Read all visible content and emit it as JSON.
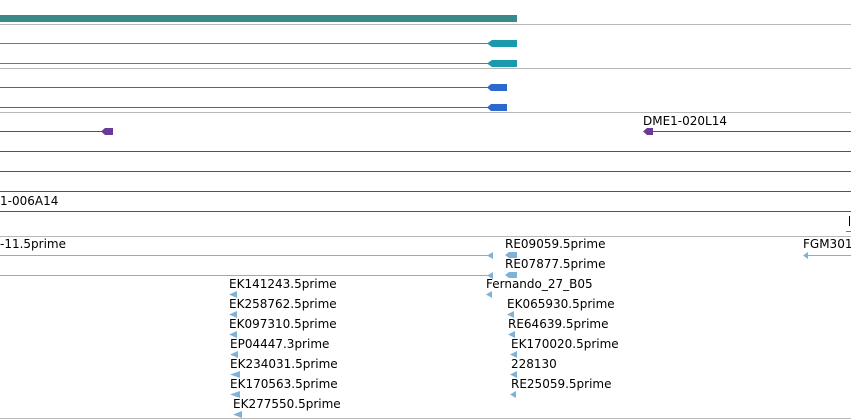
{
  "colors": {
    "separator": "#b8b8b8",
    "top_bar": "#3a8a8a",
    "teal": "#1a9aaa",
    "blue": "#2a6acc",
    "purple": "#6a3a9a",
    "est": "#7fb2d6"
  },
  "tracks": {
    "clone_label_right": "DME1-020L14",
    "clone_label_left": "1-006A14",
    "edge_glyph": "F"
  },
  "est_labels": [
    "-11.5prime",
    "RE09059.5prime",
    "FGM301",
    "RE07877.5prime",
    "EK141243.5prime",
    "Fernando_27_B05",
    "EK258762.5prime",
    "EK065930.5prime",
    "EK097310.5prime",
    "RE64639.5prime",
    "EP04447.3prime",
    "EK170020.5prime",
    "EK234031.5prime",
    "228130",
    "EK170563.5prime",
    "RE25059.5prime",
    "EK277550.5prime"
  ]
}
